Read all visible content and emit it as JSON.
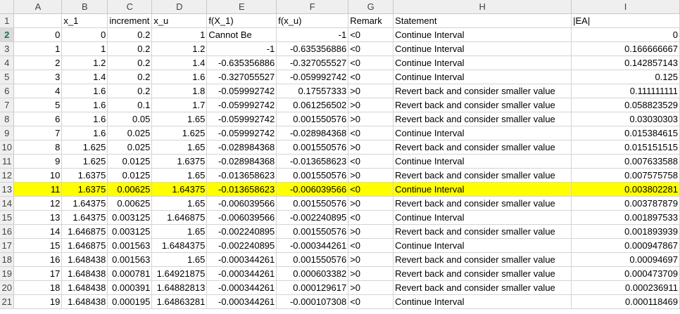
{
  "columns": [
    "A",
    "B",
    "C",
    "D",
    "E",
    "F",
    "G",
    "H",
    "I"
  ],
  "highlight_color": "#ffff00",
  "active_row": 2,
  "highlight_row": 13,
  "rows": [
    {
      "n": "1",
      "c": [
        "",
        "x_1",
        "increment",
        "x_u",
        "f(X_1)",
        "f(x_u)",
        "Remark",
        "Statement",
        "|EA|"
      ]
    },
    {
      "n": "2",
      "c": [
        "0",
        "0",
        "0.2",
        "1",
        "Cannot Be",
        "-1",
        "<0",
        "Continue Interval",
        "0"
      ]
    },
    {
      "n": "3",
      "c": [
        "1",
        "1",
        "0.2",
        "1.2",
        "-1",
        "-0.635356886",
        "<0",
        "Continue Interval",
        "0.166666667"
      ]
    },
    {
      "n": "4",
      "c": [
        "2",
        "1.2",
        "0.2",
        "1.4",
        "-0.635356886",
        "-0.327055527",
        "<0",
        "Continue Interval",
        "0.142857143"
      ]
    },
    {
      "n": "5",
      "c": [
        "3",
        "1.4",
        "0.2",
        "1.6",
        "-0.327055527",
        "-0.059992742",
        "<0",
        "Continue Interval",
        "0.125"
      ]
    },
    {
      "n": "6",
      "c": [
        "4",
        "1.6",
        "0.2",
        "1.8",
        "-0.059992742",
        "0.17557333",
        ">0",
        "Revert back and consider smaller value",
        "0.111111111"
      ]
    },
    {
      "n": "7",
      "c": [
        "5",
        "1.6",
        "0.1",
        "1.7",
        "-0.059992742",
        "0.061256502",
        ">0",
        "Revert back and consider smaller value",
        "0.058823529"
      ]
    },
    {
      "n": "8",
      "c": [
        "6",
        "1.6",
        "0.05",
        "1.65",
        "-0.059992742",
        "0.001550576",
        ">0",
        "Revert back and consider smaller value",
        "0.03030303"
      ]
    },
    {
      "n": "9",
      "c": [
        "7",
        "1.6",
        "0.025",
        "1.625",
        "-0.059992742",
        "-0.028984368",
        "<0",
        "Continue Interval",
        "0.015384615"
      ]
    },
    {
      "n": "10",
      "c": [
        "8",
        "1.625",
        "0.025",
        "1.65",
        "-0.028984368",
        "0.001550576",
        ">0",
        "Revert back and consider smaller value",
        "0.015151515"
      ]
    },
    {
      "n": "11",
      "c": [
        "9",
        "1.625",
        "0.0125",
        "1.6375",
        "-0.028984368",
        "-0.013658623",
        "<0",
        "Continue Interval",
        "0.007633588"
      ]
    },
    {
      "n": "12",
      "c": [
        "10",
        "1.6375",
        "0.0125",
        "1.65",
        "-0.013658623",
        "0.001550576",
        ">0",
        "Revert back and consider smaller value",
        "0.007575758"
      ]
    },
    {
      "n": "13",
      "c": [
        "11",
        "1.6375",
        "0.00625",
        "1.64375",
        "-0.013658623",
        "-0.006039566",
        "<0",
        "Continue Interval",
        "0.003802281"
      ]
    },
    {
      "n": "14",
      "c": [
        "12",
        "1.64375",
        "0.00625",
        "1.65",
        "-0.006039566",
        "0.001550576",
        ">0",
        "Revert back and consider smaller value",
        "0.003787879"
      ]
    },
    {
      "n": "15",
      "c": [
        "13",
        "1.64375",
        "0.003125",
        "1.646875",
        "-0.006039566",
        "-0.002240895",
        "<0",
        "Continue Interval",
        "0.001897533"
      ]
    },
    {
      "n": "16",
      "c": [
        "14",
        "1.646875",
        "0.003125",
        "1.65",
        "-0.002240895",
        "0.001550576",
        ">0",
        "Revert back and consider smaller value",
        "0.001893939"
      ]
    },
    {
      "n": "17",
      "c": [
        "15",
        "1.646875",
        "0.001563",
        "1.6484375",
        "-0.002240895",
        "-0.000344261",
        "<0",
        "Continue Interval",
        "0.000947867"
      ]
    },
    {
      "n": "18",
      "c": [
        "16",
        "1.648438",
        "0.001563",
        "1.65",
        "-0.000344261",
        "0.001550576",
        ">0",
        "Revert back and consider smaller value",
        "0.00094697"
      ]
    },
    {
      "n": "19",
      "c": [
        "17",
        "1.648438",
        "0.000781",
        "1.64921875",
        "-0.000344261",
        "0.000603382",
        ">0",
        "Revert back and consider smaller value",
        "0.000473709"
      ]
    },
    {
      "n": "20",
      "c": [
        "18",
        "1.648438",
        "0.000391",
        "1.64882813",
        "-0.000344261",
        "0.000129617",
        ">0",
        "Revert back and consider smaller value",
        "0.000236911"
      ]
    },
    {
      "n": "21",
      "c": [
        "19",
        "1.648438",
        "0.000195",
        "1.64863281",
        "-0.000344261",
        "-0.000107308",
        "<0",
        "Continue Interval",
        "0.000118469"
      ]
    }
  ]
}
